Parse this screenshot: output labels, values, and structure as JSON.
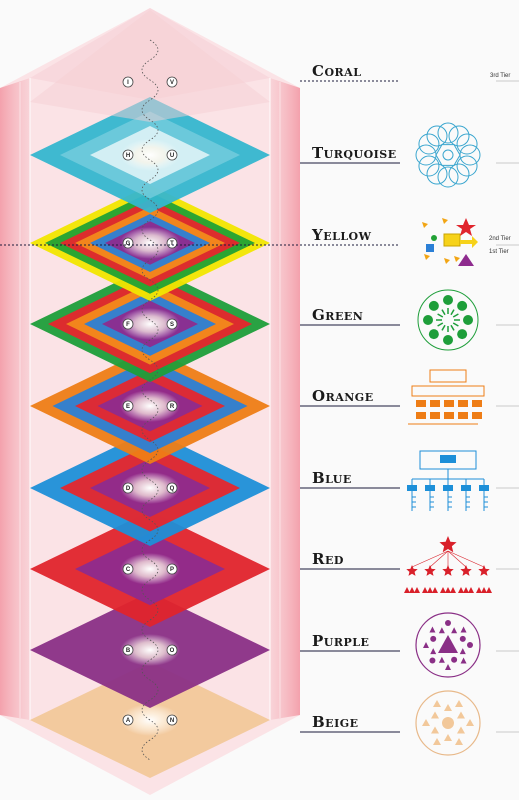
{
  "levels": [
    {
      "name": "Coral",
      "colors": [
        "#f4c9c9"
      ],
      "left_node": "I",
      "right_node": "V"
    },
    {
      "name": "Turquoise",
      "colors": [
        "#35b6cf",
        "#7fd0e0",
        "#ffffff"
      ],
      "left_node": "H",
      "right_node": "U"
    },
    {
      "name": "Yellow",
      "colors": [
        "#f2e600",
        "#21a135",
        "#e6262d",
        "#f28a1b",
        "#2b7fd6",
        "#8e2b8e"
      ],
      "left_node": "G",
      "right_node": "T"
    },
    {
      "name": "Green",
      "colors": [
        "#1e9e3a",
        "#e6262d",
        "#f28a1b",
        "#2b7fd6",
        "#8e2b8e"
      ],
      "left_node": "F",
      "right_node": "S"
    },
    {
      "name": "Orange",
      "colors": [
        "#ee7d16",
        "#2b7fd6",
        "#e6262d",
        "#8e2b8e"
      ],
      "left_node": "E",
      "right_node": "R"
    },
    {
      "name": "Blue",
      "colors": [
        "#1d8fd8",
        "#e6262d",
        "#8e2b8e"
      ],
      "left_node": "D",
      "right_node": "Q"
    },
    {
      "name": "Red",
      "colors": [
        "#e0242c",
        "#8e2b8e"
      ],
      "left_node": "C",
      "right_node": "P"
    },
    {
      "name": "Purple",
      "colors": [
        "#8a2f86"
      ],
      "left_node": "B",
      "right_node": "O"
    },
    {
      "name": "Beige",
      "colors": [
        "#f2c89a"
      ],
      "left_node": "A",
      "right_node": "N"
    }
  ],
  "tiers": {
    "third": "3rd Tier",
    "second": "2nd Tier",
    "first": "1st Tier"
  },
  "icons": [
    "coral-empty",
    "turquoise-holon-icon",
    "yellow-flow-icon",
    "green-circle-icon",
    "orange-hierarchy-icon",
    "blue-orgchart-icon",
    "red-stars-icon",
    "purple-circle-icon",
    "beige-circle-icon"
  ]
}
